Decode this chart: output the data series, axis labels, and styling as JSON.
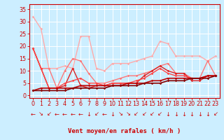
{
  "background_color": "#cceeff",
  "grid_color": "#ffffff",
  "xlabel": "Vent moyen/en rafales ( km/h )",
  "xlabel_color": "#cc0000",
  "tick_color": "#cc0000",
  "x_ticks": [
    0,
    1,
    2,
    3,
    4,
    5,
    6,
    7,
    8,
    9,
    10,
    11,
    12,
    13,
    14,
    15,
    16,
    17,
    18,
    19,
    20,
    21,
    22,
    23
  ],
  "y_ticks": [
    0,
    5,
    10,
    15,
    20,
    25,
    30,
    35
  ],
  "ylim": [
    -1,
    37
  ],
  "xlim": [
    -0.5,
    23.5
  ],
  "series": [
    {
      "color": "#ffaaaa",
      "lw": 1.0,
      "x": [
        0,
        1,
        2,
        3,
        4,
        5,
        6,
        7,
        8,
        9,
        10,
        11,
        12,
        13,
        14,
        15,
        16,
        17,
        18,
        19,
        20,
        21,
        22,
        23
      ],
      "y": [
        32,
        27,
        11,
        11,
        12,
        11,
        24,
        24,
        11,
        10,
        13,
        13,
        13,
        14,
        15,
        16,
        22,
        21,
        16,
        16,
        16,
        16,
        14,
        16
      ]
    },
    {
      "color": "#ff7777",
      "lw": 1.0,
      "x": [
        0,
        1,
        2,
        3,
        4,
        5,
        6,
        7,
        8,
        9,
        10,
        11,
        12,
        13,
        14,
        15,
        16,
        17,
        18,
        19,
        20,
        21,
        22,
        23
      ],
      "y": [
        19,
        11,
        11,
        3,
        10,
        15,
        14,
        9,
        5,
        5,
        6,
        7,
        8,
        8,
        9,
        10,
        12,
        13,
        9,
        9,
        7,
        7,
        14,
        8
      ]
    },
    {
      "color": "#dd2222",
      "lw": 1.0,
      "x": [
        0,
        1,
        2,
        3,
        4,
        5,
        6,
        7,
        8,
        9,
        10,
        11,
        12,
        13,
        14,
        15,
        16,
        17,
        18,
        19,
        20,
        21,
        22,
        23
      ],
      "y": [
        19,
        11,
        3,
        3,
        4,
        11,
        4,
        3,
        4,
        4,
        5,
        5,
        5,
        5,
        8,
        10,
        12,
        10,
        9,
        9,
        6,
        6,
        8,
        8
      ]
    },
    {
      "color": "#ff4444",
      "lw": 1.0,
      "x": [
        0,
        1,
        2,
        3,
        4,
        5,
        6,
        7,
        8,
        9,
        10,
        11,
        12,
        13,
        14,
        15,
        16,
        17,
        18,
        19,
        20,
        21,
        22,
        23
      ],
      "y": [
        19,
        11,
        3,
        3,
        5,
        6,
        7,
        5,
        5,
        4,
        5,
        5,
        5,
        6,
        7,
        9,
        11,
        9,
        8,
        8,
        7,
        7,
        8,
        8
      ]
    },
    {
      "color": "#bb0000",
      "lw": 1.2,
      "x": [
        0,
        1,
        2,
        3,
        4,
        5,
        6,
        7,
        8,
        9,
        10,
        11,
        12,
        13,
        14,
        15,
        16,
        17,
        18,
        19,
        20,
        21,
        22,
        23
      ],
      "y": [
        2,
        3,
        3,
        3,
        3,
        3,
        4,
        4,
        4,
        4,
        4,
        4,
        5,
        5,
        5,
        6,
        6,
        7,
        7,
        7,
        7,
        7,
        8,
        8
      ]
    },
    {
      "color": "#880000",
      "lw": 1.2,
      "x": [
        0,
        1,
        2,
        3,
        4,
        5,
        6,
        7,
        8,
        9,
        10,
        11,
        12,
        13,
        14,
        15,
        16,
        17,
        18,
        19,
        20,
        21,
        22,
        23
      ],
      "y": [
        2,
        2,
        2,
        2,
        2,
        3,
        3,
        3,
        3,
        3,
        4,
        4,
        4,
        4,
        5,
        5,
        5,
        6,
        6,
        6,
        7,
        7,
        7,
        8
      ]
    }
  ],
  "arrows": [
    "←",
    "↘",
    "↙",
    "←",
    "←",
    "←",
    "←",
    "↓",
    "↙",
    "←",
    "↓",
    "↘",
    "↘",
    "↙",
    "↙",
    "↙",
    "↙",
    "↓",
    "↓",
    "↓",
    "↓",
    "↓",
    "↓",
    "↙"
  ],
  "axis_fontsize": 6.5,
  "tick_fontsize": 5.8,
  "arrow_fontsize": 6.0
}
